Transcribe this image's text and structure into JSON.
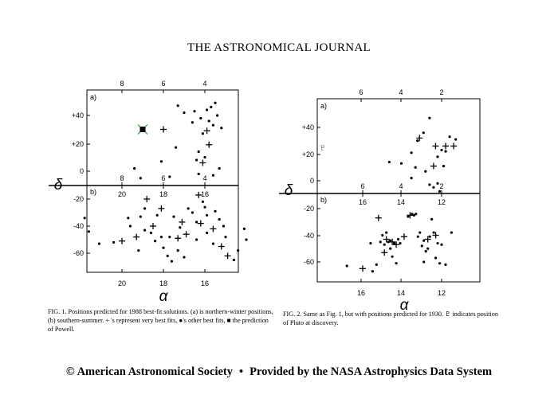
{
  "journal_title": "THE ASTRONOMICAL JOURNAL",
  "footer": {
    "left": "© American Astronomical Society",
    "separator": "•",
    "right": "Provided by the NASA Astrophysics Data System"
  },
  "colors": {
    "ink": "#000000",
    "powell_marker": "#1a8a1a"
  },
  "figures": [
    {
      "id": "fig1",
      "caption": "FIG. 1. Positions predicted for 1988 best-fit solutions. (a) is northern-winter positions, (b) southern-summer. + 's represent very best fits, ●'s other best fits, ■ the prediction of Powell.",
      "y_axis_symbol": "δ",
      "x_axis_symbol": "α",
      "panel_a": {
        "label": "a)",
        "top_ticks": [
          "8",
          "6",
          "4"
        ],
        "y_ticks": [
          "+40",
          "+20",
          "0"
        ]
      },
      "panel_b": {
        "label": "b)",
        "inner_top_ticks": [
          "8",
          "6",
          "4"
        ],
        "inner_ra_ticks": [
          "20",
          "18",
          "16"
        ],
        "y_ticks": [
          "-20",
          "-40",
          "-60"
        ],
        "bottom_ticks": [
          "20",
          "18",
          "16"
        ]
      }
    },
    {
      "id": "fig2",
      "caption": "FIG. 2. Same as Fig. 1, but with positions predicted for 1930. ♇ indicates position of Pluto at discovery.",
      "y_axis_symbol": "δ",
      "x_axis_symbol": "α",
      "pluto_symbol": "♇",
      "panel_a": {
        "label": "a)",
        "top_ticks": [
          "6",
          "4",
          "2"
        ],
        "y_ticks": [
          "+40",
          "+20",
          "0"
        ]
      },
      "panel_b": {
        "label": "b)",
        "inner_top_ticks": [
          "6",
          "4",
          "2"
        ],
        "inner_ra_ticks": [
          "16",
          "14",
          "12"
        ],
        "y_ticks": [
          "-20",
          "-40",
          "-60"
        ],
        "bottom_ticks": [
          "16",
          "14",
          "12"
        ]
      }
    }
  ],
  "chart_data": [
    {
      "type": "scatter",
      "title": "Fig. 1(a)",
      "xlabel": "α (hours)",
      "ylabel": "δ (degrees)",
      "xlim": [
        9.5,
        2.2
      ],
      "ylim": [
        -11,
        58
      ],
      "series": [
        {
          "name": "+",
          "points": [
            [
              6.0,
              30
            ],
            [
              3.9,
              29
            ],
            [
              3.8,
              19
            ],
            [
              4.1,
              6
            ]
          ]
        },
        {
          "name": "●",
          "points": [
            [
              3.5,
              49
            ],
            [
              3.7,
              46
            ],
            [
              3.9,
              44
            ],
            [
              4.5,
              43
            ],
            [
              5.0,
              42
            ],
            [
              5.3,
              47
            ],
            [
              3.4,
              40
            ],
            [
              4.2,
              38
            ],
            [
              3.8,
              36
            ],
            [
              4.6,
              35
            ],
            [
              3.6,
              33
            ],
            [
              3.2,
              31
            ],
            [
              4.1,
              27
            ],
            [
              5.4,
              17
            ],
            [
              6.1,
              7
            ],
            [
              4.3,
              14
            ],
            [
              4.0,
              10
            ],
            [
              4.4,
              8
            ],
            [
              7.4,
              2
            ],
            [
              3.6,
              -3
            ],
            [
              4.3,
              -2
            ],
            [
              5.7,
              -4
            ],
            [
              7.1,
              -5
            ],
            [
              3.3,
              2
            ]
          ]
        },
        {
          "name": "■",
          "points": [
            [
              7.0,
              30
            ]
          ]
        }
      ]
    },
    {
      "type": "scatter",
      "title": "Fig. 1(b)",
      "xlabel": "α (hours)",
      "ylabel": "δ (degrees)",
      "xlim": [
        23,
        13.5
      ],
      "ylim": [
        -73,
        -8
      ],
      "series": [
        {
          "name": "+",
          "points": [
            [
              18.8,
              -20
            ],
            [
              18.1,
              -27
            ],
            [
              18.5,
              -40
            ],
            [
              19.3,
              -48
            ],
            [
              20.0,
              -51
            ],
            [
              17.3,
              -49
            ],
            [
              16.9,
              -46
            ],
            [
              16.2,
              -38
            ],
            [
              15.6,
              -42
            ],
            [
              15.2,
              -55
            ],
            [
              14.9,
              -62
            ],
            [
              17.1,
              -37
            ],
            [
              16.3,
              -17
            ]
          ]
        },
        {
          "name": "●",
          "points": [
            [
              21.8,
              -34
            ],
            [
              21.6,
              -44
            ],
            [
              21.1,
              -53
            ],
            [
              20.4,
              -52
            ],
            [
              19.7,
              -34
            ],
            [
              19.1,
              -33
            ],
            [
              18.9,
              -27
            ],
            [
              18.6,
              -45
            ],
            [
              18.4,
              -51
            ],
            [
              18.1,
              -48
            ],
            [
              18.0,
              -56
            ],
            [
              17.8,
              -62
            ],
            [
              17.6,
              -66
            ],
            [
              17.3,
              -58
            ],
            [
              17.0,
              -63
            ],
            [
              16.6,
              -30
            ],
            [
              16.4,
              -37
            ],
            [
              16.1,
              -22
            ],
            [
              15.9,
              -45
            ],
            [
              15.6,
              -53
            ],
            [
              15.3,
              -35
            ],
            [
              15.0,
              -48
            ],
            [
              14.6,
              -65
            ],
            [
              14.4,
              -58
            ],
            [
              14.1,
              -42
            ],
            [
              14.0,
              -50
            ],
            [
              16.8,
              -27
            ],
            [
              17.5,
              -33
            ],
            [
              19.6,
              -40
            ],
            [
              18.9,
              -43
            ],
            [
              15.9,
              -32
            ],
            [
              15.5,
              -29
            ],
            [
              17.2,
              -41
            ],
            [
              16.4,
              -50
            ],
            [
              18.3,
              -32
            ],
            [
              19.2,
              -58
            ],
            [
              17.7,
              -48
            ],
            [
              16.0,
              -26
            ],
            [
              15.1,
              -40
            ]
          ]
        }
      ]
    },
    {
      "type": "scatter",
      "title": "Fig. 2(a)",
      "xlabel": "α (hours)",
      "ylabel": "δ (degrees)",
      "xlim": [
        8.6,
        0.4
      ],
      "ylim": [
        -9,
        58
      ],
      "series": [
        {
          "name": "+",
          "points": [
            [
              3.1,
              32
            ],
            [
              2.3,
              26
            ],
            [
              1.8,
              26
            ],
            [
              1.4,
              26
            ],
            [
              2.4,
              11
            ]
          ]
        },
        {
          "name": "●",
          "points": [
            [
              2.6,
              47
            ],
            [
              2.9,
              36
            ],
            [
              1.6,
              33
            ],
            [
              1.3,
              31
            ],
            [
              3.2,
              30
            ],
            [
              3.5,
              21
            ],
            [
              2.0,
              23
            ],
            [
              2.2,
              18
            ],
            [
              4.0,
              13
            ],
            [
              4.6,
              14
            ],
            [
              3.3,
              10
            ],
            [
              2.8,
              7
            ],
            [
              1.9,
              11
            ],
            [
              2.2,
              -2
            ],
            [
              2.6,
              -3
            ],
            [
              2.4,
              -5
            ],
            [
              3.5,
              2
            ],
            [
              2.1,
              -8
            ],
            [
              1.8,
              22
            ]
          ]
        },
        {
          "name": "♇",
          "points": [
            [
              7.9,
              25
            ]
          ]
        }
      ]
    },
    {
      "type": "scatter",
      "title": "Fig. 2(b)",
      "xlabel": "α (hours)",
      "ylabel": "δ (degrees)",
      "xlim": [
        18.5,
        10.2
      ],
      "ylim": [
        -73,
        -10
      ],
      "series": [
        {
          "name": "+",
          "points": [
            [
              15.2,
              -27
            ],
            [
              14.8,
              -43
            ],
            [
              14.5,
              -45
            ],
            [
              14.3,
              -47
            ],
            [
              13.9,
              -41
            ],
            [
              14.9,
              -53
            ],
            [
              16.0,
              -65
            ],
            [
              12.3,
              -40
            ],
            [
              12.7,
              -43
            ],
            [
              13.6,
              -25
            ]
          ]
        },
        {
          "name": "●",
          "points": [
            [
              13.5,
              -24
            ],
            [
              13.4,
              -25
            ],
            [
              13.3,
              -24
            ],
            [
              13.7,
              -26
            ],
            [
              14.6,
              -44
            ],
            [
              14.1,
              -46
            ],
            [
              14.7,
              -45
            ],
            [
              14.4,
              -46
            ],
            [
              14.2,
              -43
            ],
            [
              15.1,
              -45
            ],
            [
              14.9,
              -47
            ],
            [
              15.0,
              -40
            ],
            [
              14.8,
              -38
            ],
            [
              14.5,
              -56
            ],
            [
              14.3,
              -61
            ],
            [
              15.3,
              -62
            ],
            [
              15.5,
              -67
            ],
            [
              13.2,
              -41
            ],
            [
              12.9,
              -44
            ],
            [
              12.6,
              -41
            ],
            [
              12.4,
              -38
            ],
            [
              12.2,
              -46
            ],
            [
              12.0,
              -47
            ],
            [
              12.3,
              -57
            ],
            [
              12.1,
              -61
            ],
            [
              11.8,
              -62
            ],
            [
              12.8,
              -52
            ],
            [
              12.9,
              -60
            ],
            [
              11.5,
              -38
            ],
            [
              12.5,
              -28
            ],
            [
              16.8,
              -63
            ],
            [
              15.6,
              -46
            ],
            [
              14.6,
              -50
            ],
            [
              13.0,
              -48
            ],
            [
              13.1,
              -38
            ],
            [
              12.7,
              -50
            ]
          ]
        }
      ]
    }
  ]
}
